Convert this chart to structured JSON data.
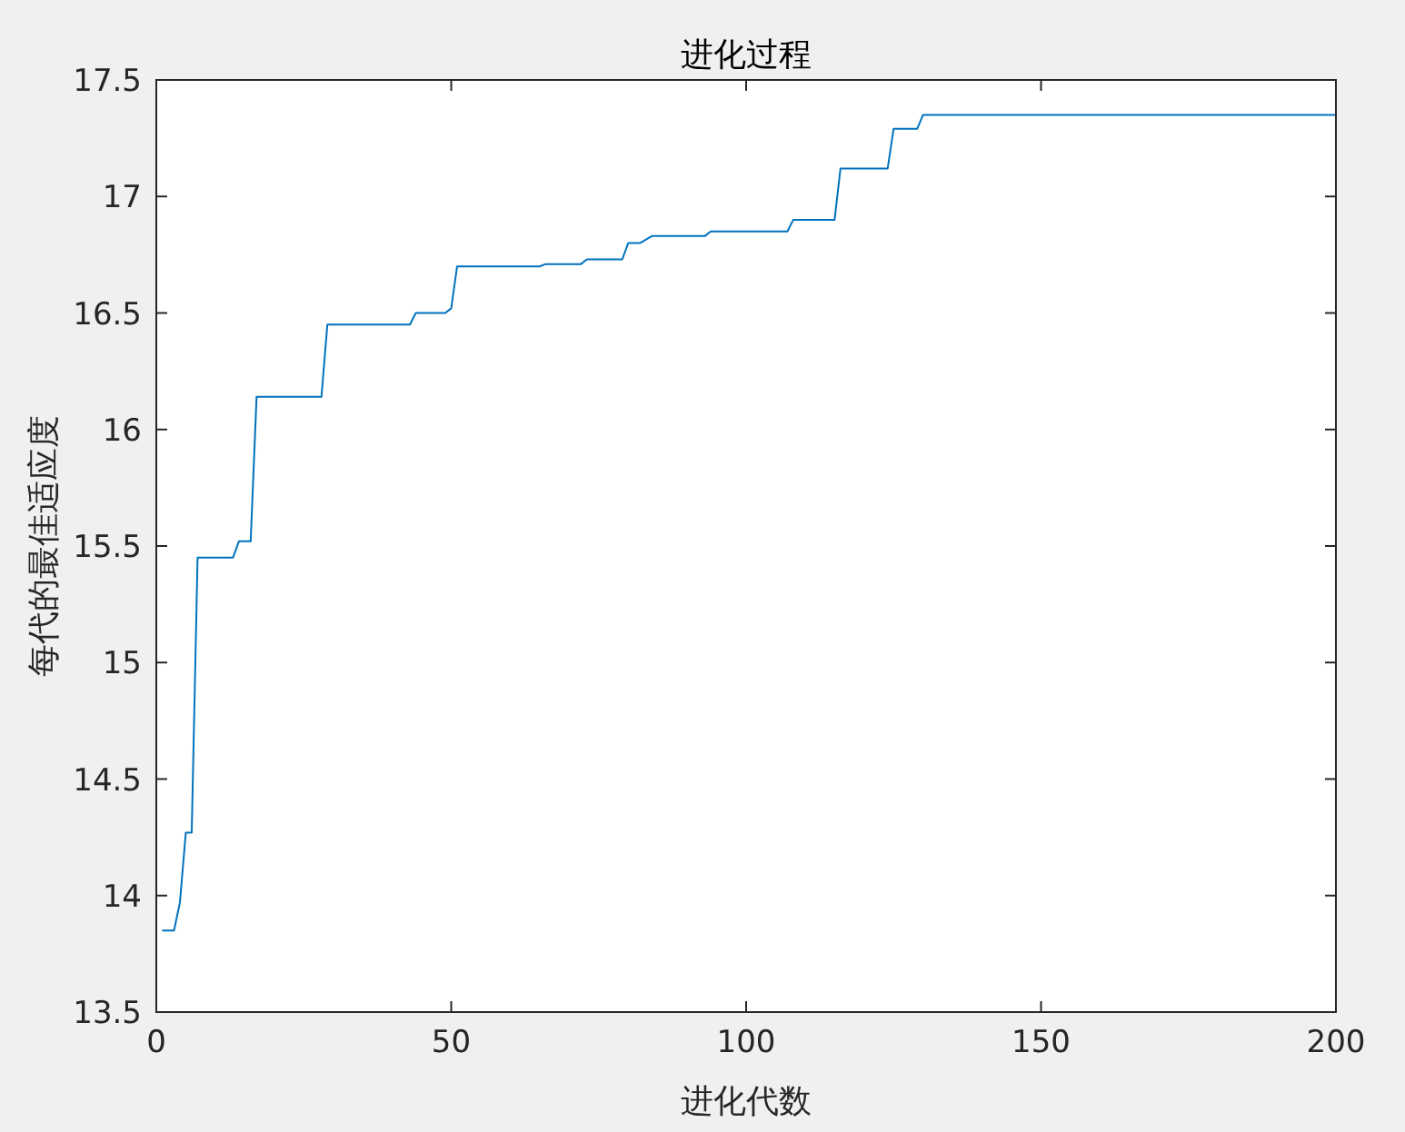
{
  "chart_data": {
    "type": "step",
    "title": "进化过程",
    "xlabel": "进化代数",
    "ylabel": "每代的最佳适应度",
    "x": [
      1,
      3,
      4,
      5,
      6,
      7,
      13,
      14,
      16,
      17,
      28,
      29,
      43,
      44,
      49,
      50,
      51,
      65,
      66,
      72,
      73,
      79,
      80,
      82,
      84,
      93,
      94,
      107,
      108,
      115,
      116,
      124,
      125,
      129,
      130,
      200
    ],
    "series": [
      {
        "color": "#0072bd",
        "values": [
          13.85,
          13.85,
          13.97,
          14.27,
          14.27,
          15.45,
          15.45,
          15.52,
          15.52,
          16.14,
          16.14,
          16.45,
          16.45,
          16.5,
          16.5,
          16.52,
          16.7,
          16.7,
          16.71,
          16.71,
          16.73,
          16.73,
          16.8,
          16.8,
          16.83,
          16.83,
          16.85,
          16.85,
          16.9,
          16.9,
          17.12,
          17.12,
          17.29,
          17.29,
          17.35,
          17.35
        ]
      }
    ],
    "xlim": [
      0,
      200
    ],
    "xticks": [
      0,
      50,
      100,
      150,
      200
    ],
    "ylim": [
      13.5,
      17.5
    ],
    "yticks": [
      13.5,
      14,
      14.5,
      15,
      15.5,
      16,
      16.5,
      17,
      17.5
    ],
    "grid": false,
    "marker": "none",
    "line_style": "solid"
  }
}
